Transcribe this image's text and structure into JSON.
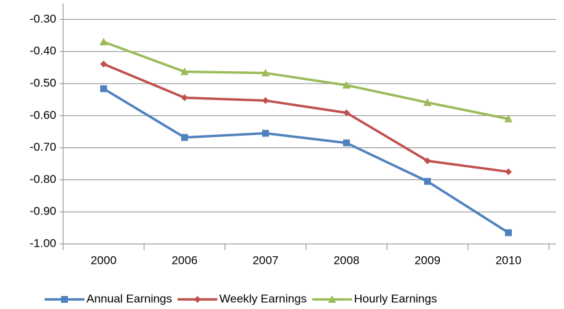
{
  "chart_data": {
    "type": "line",
    "categories": [
      "2000",
      "2006",
      "2007",
      "2008",
      "2009",
      "2010"
    ],
    "series": [
      {
        "name": "Annual Earnings",
        "color": "#4f81bd",
        "values": [
          -0.516,
          -0.668,
          -0.655,
          -0.685,
          -0.805,
          -0.965
        ]
      },
      {
        "name": "Weekly Earnings",
        "color": "#c0504d",
        "values": [
          -0.439,
          -0.544,
          -0.553,
          -0.591,
          -0.741,
          -0.775
        ]
      },
      {
        "name": "Hourly Earnings",
        "color": "#9bbb59",
        "values": [
          -0.37,
          -0.463,
          -0.467,
          -0.505,
          -0.559,
          -0.61
        ]
      }
    ],
    "ylim": [
      -1.0,
      -0.25
    ],
    "yticks": [
      {
        "value": -0.3,
        "label": "-0.30"
      },
      {
        "value": -0.4,
        "label": "-0.40"
      },
      {
        "value": -0.5,
        "label": "-0.50"
      },
      {
        "value": -0.6,
        "label": "-0.60"
      },
      {
        "value": -0.7,
        "label": "-0.70"
      },
      {
        "value": -0.8,
        "label": "-0.80"
      },
      {
        "value": -0.9,
        "label": "-0.90"
      },
      {
        "value": -1.0,
        "label": "-1.00"
      }
    ],
    "grid": true,
    "legend": "bottom"
  }
}
